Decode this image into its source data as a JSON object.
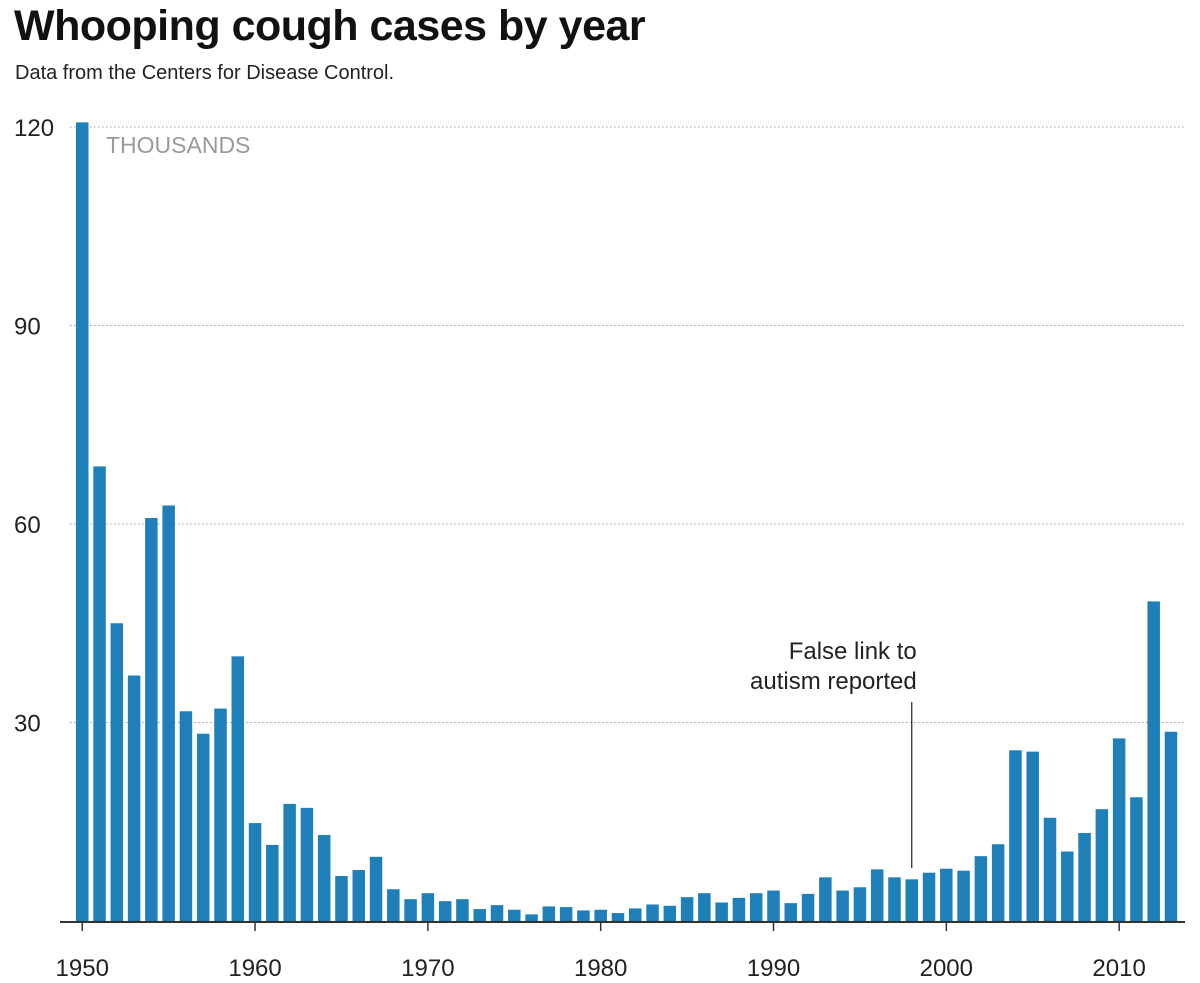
{
  "chart_data": {
    "type": "bar",
    "title": "Whooping cough cases by year",
    "subtitle": "Data from the Centers for Disease Control.",
    "unit_label": "THOUSANDS",
    "xlabel": "",
    "ylabel": "",
    "ylim": [
      0,
      120
    ],
    "grid": true,
    "bar_color": "#1f7fb8",
    "y_ticks": [
      30,
      60,
      90,
      120
    ],
    "x_ticks": [
      1950,
      1960,
      1970,
      1980,
      1990,
      2000,
      2010
    ],
    "years": [
      1950,
      1951,
      1952,
      1953,
      1954,
      1955,
      1956,
      1957,
      1958,
      1959,
      1960,
      1961,
      1962,
      1963,
      1964,
      1965,
      1966,
      1967,
      1968,
      1969,
      1970,
      1971,
      1972,
      1973,
      1974,
      1975,
      1976,
      1977,
      1978,
      1979,
      1980,
      1981,
      1982,
      1983,
      1984,
      1985,
      1986,
      1987,
      1988,
      1989,
      1990,
      1991,
      1992,
      1993,
      1994,
      1995,
      1996,
      1997,
      1998,
      1999,
      2000,
      2001,
      2002,
      2003,
      2004,
      2005,
      2006,
      2007,
      2008,
      2009,
      2010,
      2011,
      2012,
      2013
    ],
    "values": [
      120.7,
      68.7,
      45.0,
      37.1,
      60.9,
      62.8,
      31.7,
      28.3,
      32.1,
      40.0,
      14.8,
      11.5,
      17.7,
      17.1,
      13.0,
      6.8,
      7.7,
      9.7,
      4.8,
      3.3,
      4.2,
      3.0,
      3.3,
      1.8,
      2.4,
      1.7,
      1.0,
      2.2,
      2.1,
      1.6,
      1.7,
      1.2,
      1.9,
      2.5,
      2.3,
      3.6,
      4.2,
      2.8,
      3.5,
      4.2,
      4.6,
      2.7,
      4.1,
      6.6,
      4.6,
      5.1,
      7.8,
      6.6,
      6.3,
      7.3,
      7.9,
      7.6,
      9.8,
      11.6,
      25.8,
      25.6,
      15.6,
      10.5,
      13.3,
      16.9,
      27.6,
      18.7,
      48.3,
      28.6
    ],
    "annotation": {
      "year": 1998,
      "lines": [
        "False link to",
        "autism reported"
      ]
    }
  }
}
